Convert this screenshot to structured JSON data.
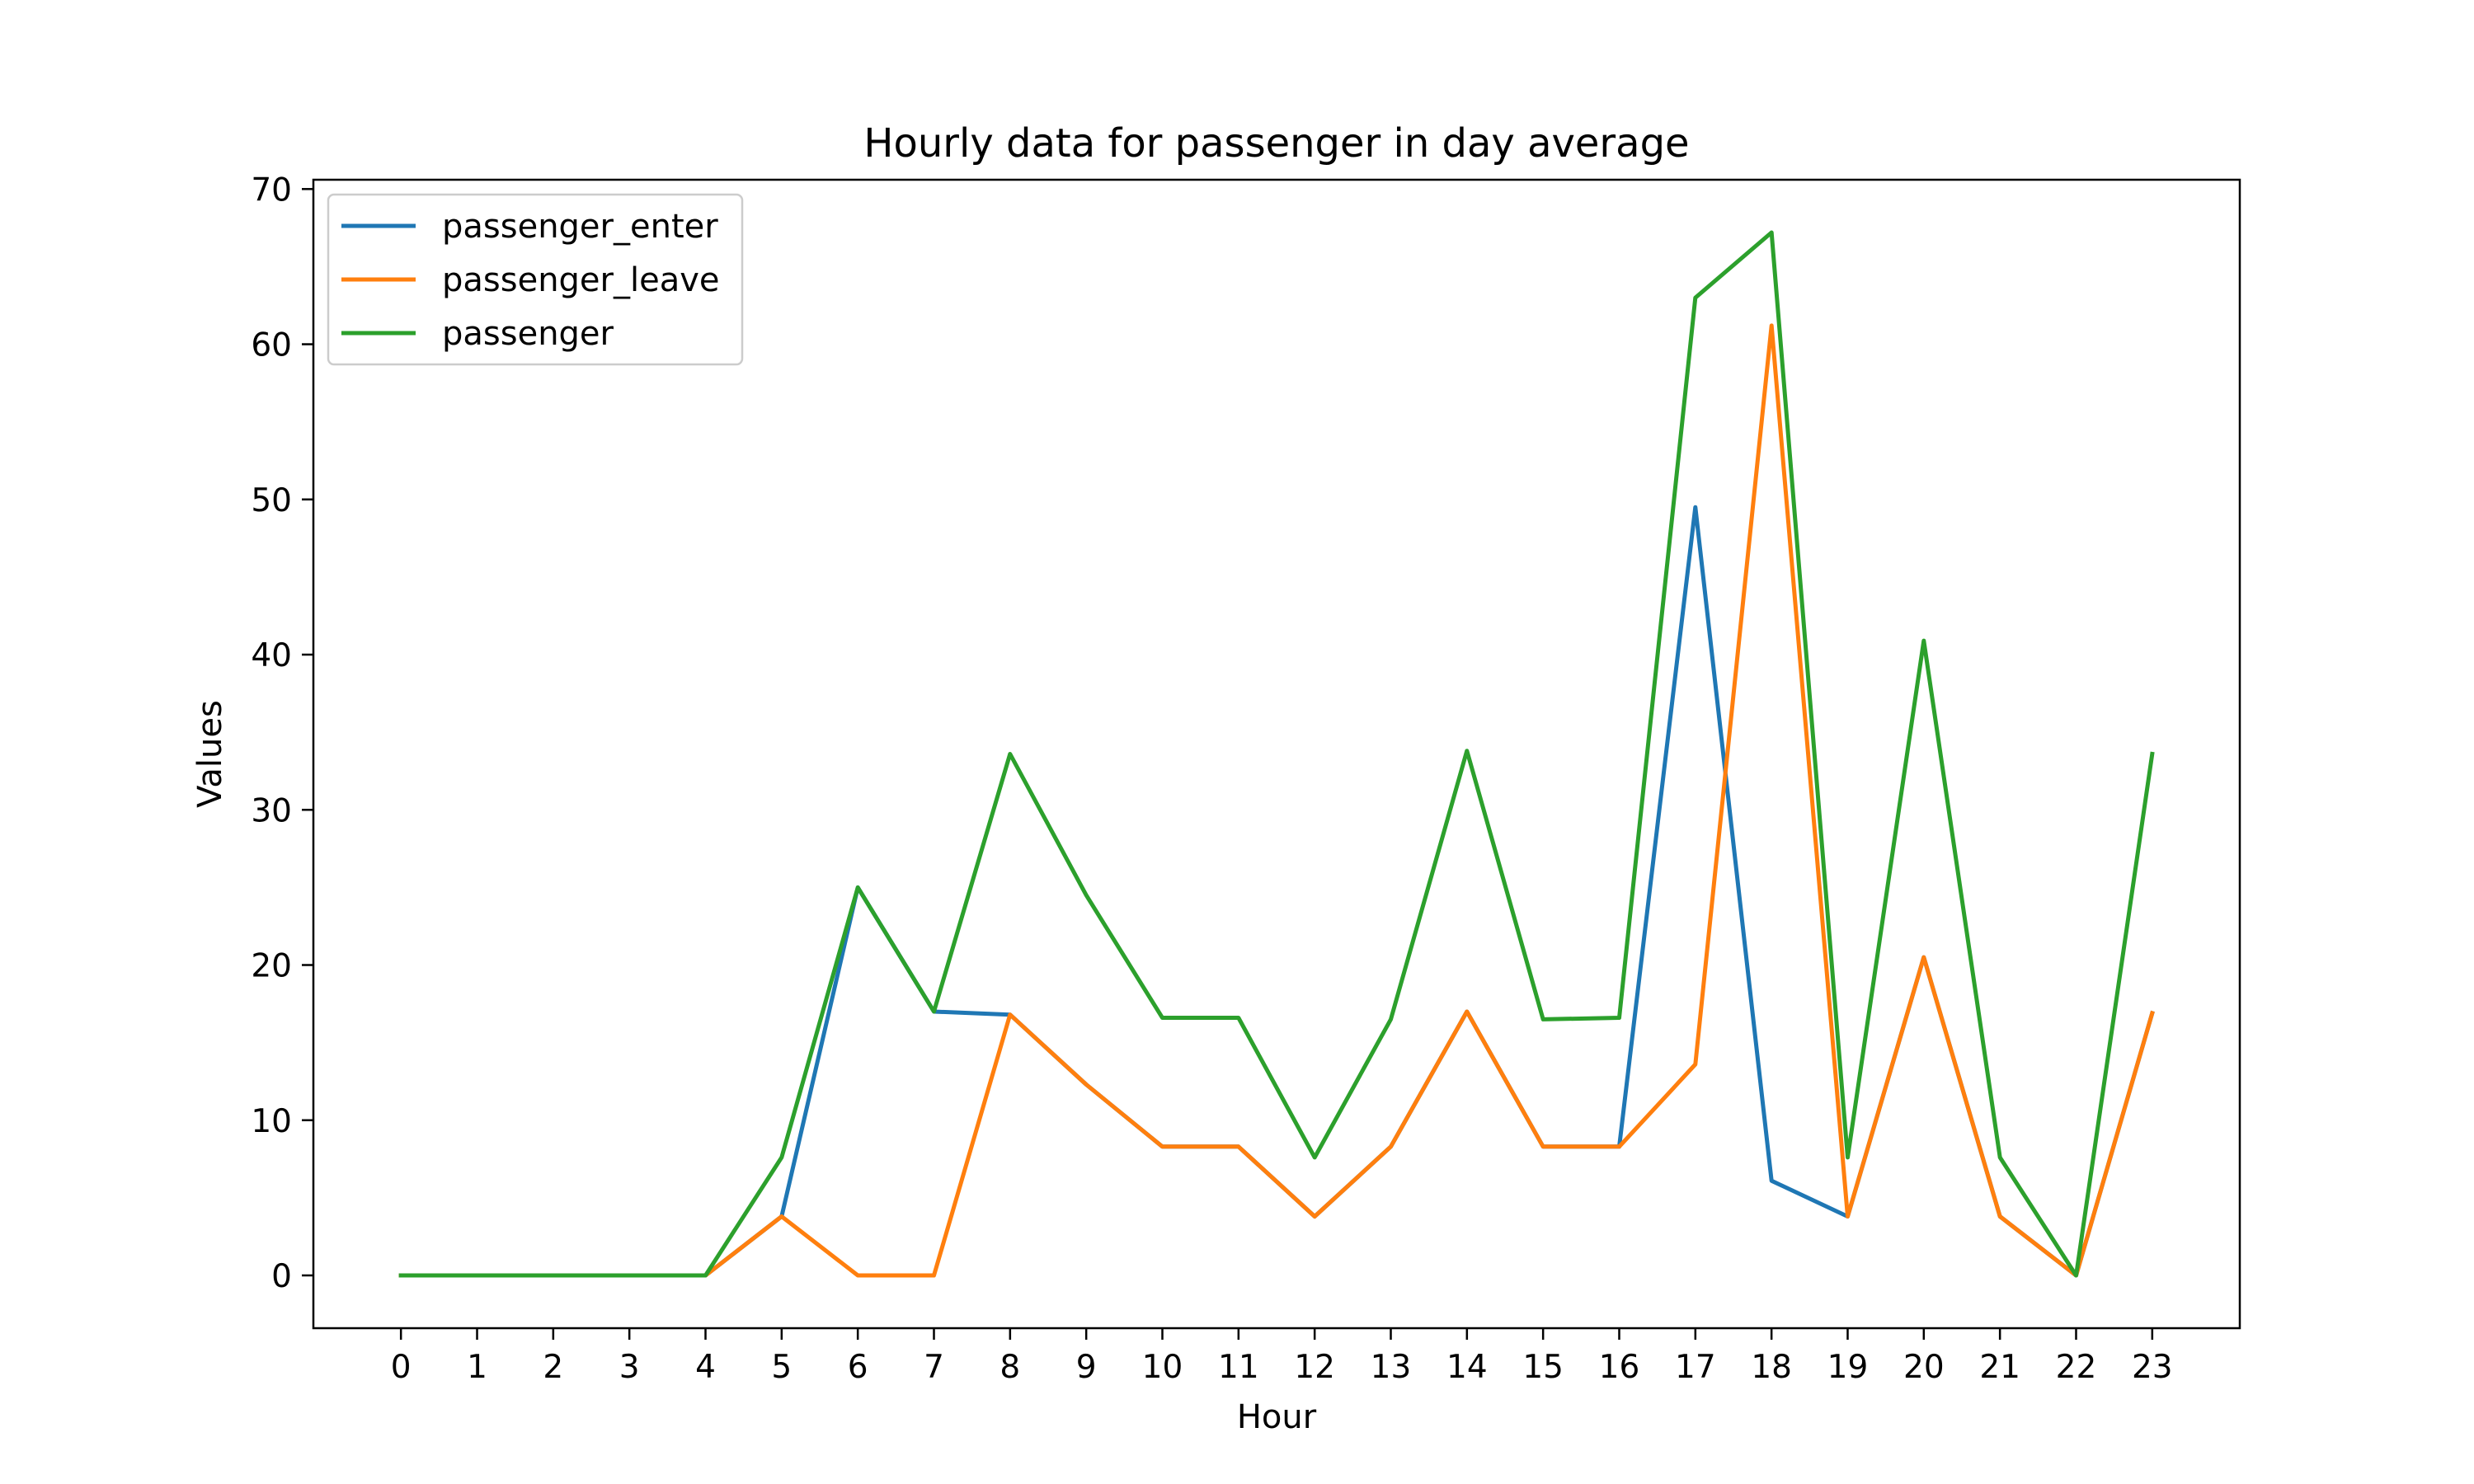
{
  "chart_data": {
    "type": "line",
    "title": "Hourly data for passenger in day average",
    "xlabel": "Hour",
    "ylabel": "Values",
    "x": [
      0,
      1,
      2,
      3,
      4,
      5,
      6,
      7,
      8,
      9,
      10,
      11,
      12,
      13,
      14,
      15,
      16,
      17,
      18,
      19,
      20,
      21,
      22,
      23
    ],
    "x_tick_labels": [
      "0",
      "1",
      "2",
      "3",
      "4",
      "5",
      "6",
      "7",
      "8",
      "9",
      "10",
      "11",
      "12",
      "13",
      "14",
      "15",
      "16",
      "17",
      "18",
      "19",
      "20",
      "21",
      "22",
      "23"
    ],
    "y_ticks": [
      0,
      10,
      20,
      30,
      40,
      50,
      60,
      70
    ],
    "y_tick_labels": [
      "0",
      "10",
      "20",
      "30",
      "40",
      "50",
      "60",
      "70"
    ],
    "xlim": [
      -1.15,
      24.15
    ],
    "ylim": [
      -3.4,
      70.6
    ],
    "grid": false,
    "legend_position": "upper-left",
    "series": [
      {
        "name": "passenger_enter",
        "color": "#1f77b4",
        "values": [
          0,
          0,
          0,
          0,
          0,
          3.8,
          25.0,
          17.0,
          16.8,
          12.3,
          8.3,
          8.3,
          3.8,
          8.3,
          17.0,
          8.3,
          8.3,
          49.5,
          6.1,
          3.8,
          20.5,
          3.8,
          0,
          16.9
        ]
      },
      {
        "name": "passenger_leave",
        "color": "#ff7f0e",
        "values": [
          0,
          0,
          0,
          0,
          0,
          3.8,
          0,
          0,
          16.8,
          12.3,
          8.3,
          8.3,
          3.8,
          8.3,
          17.0,
          8.3,
          8.3,
          13.6,
          61.2,
          3.8,
          20.5,
          3.8,
          0,
          16.9
        ]
      },
      {
        "name": "passenger",
        "color": "#2ca02c",
        "values": [
          0,
          0,
          0,
          0,
          0,
          7.6,
          25.0,
          17.0,
          33.6,
          24.5,
          16.6,
          16.6,
          7.6,
          16.5,
          33.8,
          16.5,
          16.6,
          63.0,
          67.2,
          7.6,
          40.9,
          7.6,
          0,
          33.6
        ]
      }
    ]
  }
}
